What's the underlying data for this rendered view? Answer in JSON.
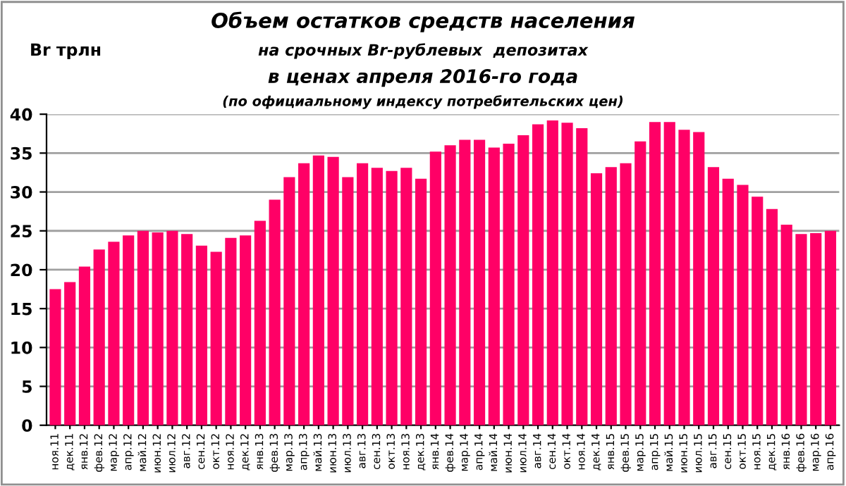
{
  "chart_data": {
    "type": "bar",
    "title": "Объем остатков средств населения",
    "subtitle": "на срочных Br-рублевых  депозитах\nв ценах апреля 2016-го года\n(по официальному индексу потребительских цен)",
    "ylabel": "Br трлн",
    "categories": [
      "ноя.11",
      "дек.11",
      "янв.12",
      "фев.12",
      "мар.12",
      "апр.12",
      "май.12",
      "июн.12",
      "июл.12",
      "авг.12",
      "сен.12",
      "окт.12",
      "ноя.12",
      "дек.12",
      "янв.13",
      "фев.13",
      "мар.13",
      "апр.13",
      "май.13",
      "июн.13",
      "июл.13",
      "авг.13",
      "сен.13",
      "окт.13",
      "ноя.13",
      "дек.13",
      "янв.14",
      "фев.14",
      "мар.14",
      "апр.14",
      "май.14",
      "июн.14",
      "июл.14",
      "авг.14",
      "сен.14",
      "окт.14",
      "ноя.14",
      "дек.14",
      "янв.15",
      "фев.15",
      "мар.15",
      "апр.15",
      "май.15",
      "июн.15",
      "июл.15",
      "авг.15",
      "сен.15",
      "окт.15",
      "ноя.15",
      "дек.15",
      "янв.16",
      "фев.16",
      "мар.16",
      "апр.16"
    ],
    "values": [
      17.5,
      18.4,
      20.4,
      22.6,
      23.6,
      24.4,
      25.0,
      24.8,
      25.0,
      24.6,
      23.1,
      22.3,
      24.1,
      24.4,
      26.3,
      29.0,
      31.9,
      33.7,
      34.7,
      34.5,
      31.9,
      33.7,
      33.1,
      32.7,
      33.1,
      31.7,
      35.2,
      36.0,
      36.7,
      36.7,
      35.7,
      36.2,
      37.3,
      38.7,
      39.2,
      38.9,
      38.2,
      32.4,
      33.2,
      33.7,
      36.5,
      39.0,
      39.0,
      38.0,
      37.7,
      33.2,
      31.7,
      30.9,
      29.4,
      27.8,
      25.8,
      24.6,
      24.7,
      25.0
    ],
    "color": "#ff0066",
    "ylim": [
      0,
      40
    ],
    "yticks": [
      0,
      5,
      10,
      15,
      20,
      25,
      30,
      35,
      40
    ],
    "grid": "y"
  }
}
